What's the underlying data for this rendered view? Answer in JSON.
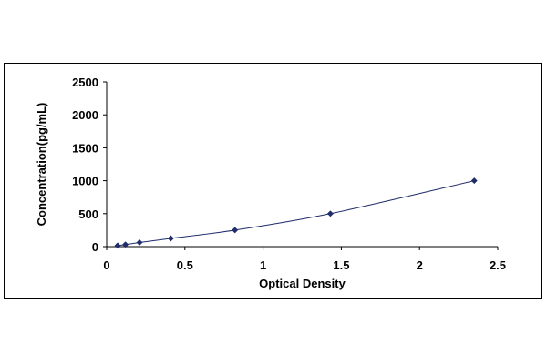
{
  "chart_data": {
    "type": "line",
    "title": "",
    "xlabel": "Optical Density",
    "ylabel": "Concentration(pg/mL)",
    "xlim": [
      0,
      2.5
    ],
    "ylim": [
      0,
      2500
    ],
    "xticks": [
      0,
      0.5,
      1,
      1.5,
      2,
      2.5
    ],
    "xtick_labels": [
      "0",
      "0.5",
      "1",
      "1.5",
      "2",
      "2.5"
    ],
    "yticks": [
      0,
      500,
      1000,
      1500,
      2000,
      2500
    ],
    "ytick_labels": [
      "0",
      "500",
      "1000",
      "1500",
      "2000",
      "2500"
    ],
    "grid": false,
    "legend": "none",
    "marker": "diamond",
    "colors": {
      "marker": "#1f2d6b",
      "line": "#1f2d6b",
      "axis": "#000000"
    },
    "series": [
      {
        "x": [
          0.07,
          0.12,
          0.21,
          0.41,
          0.82,
          1.43,
          2.35
        ],
        "y": [
          15.6,
          31.2,
          62.5,
          125,
          250,
          500,
          1000
        ]
      }
    ]
  }
}
